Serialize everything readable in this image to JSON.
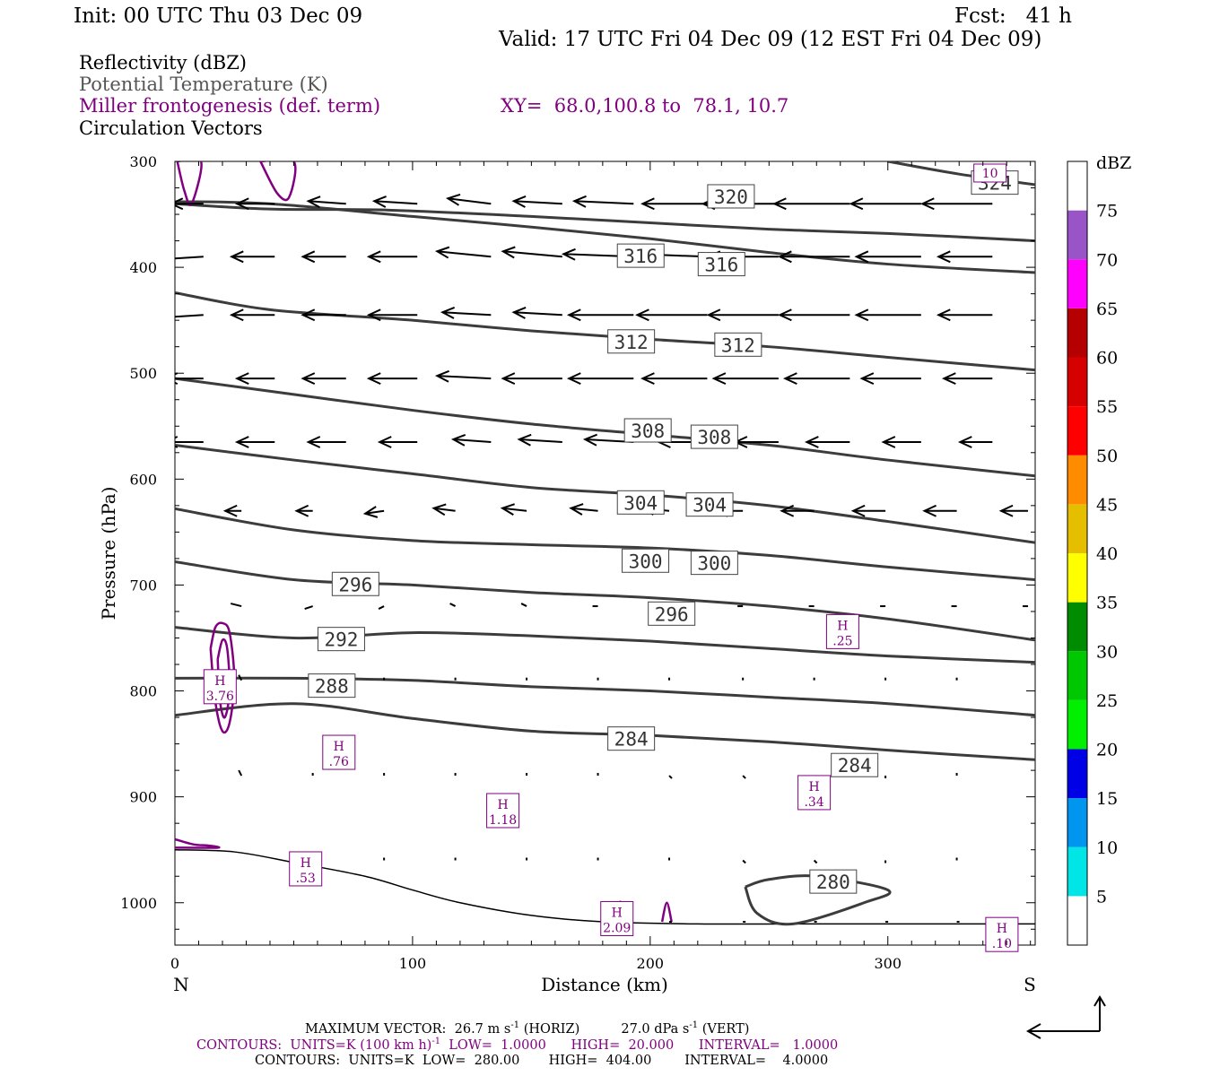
{
  "header": {
    "init": "Init: 00 UTC Thu 03 Dec 09",
    "fcst": "Fcst:   41 h",
    "valid": "Valid: 17 UTC Fri 04 Dec 09 (12 EST Fri 04 Dec 09)"
  },
  "legend": {
    "reflectivity": "Reflectivity (dBZ)",
    "theta": "Potential Temperature (K)",
    "miller": "Miller frontogenesis (def. term)",
    "xy": "XY=  68.0,100.8 to  78.1, 10.7",
    "vectors": "Circulation Vectors"
  },
  "colors": {
    "theta": "#3c3c3c",
    "miller": "#800080",
    "vector": "#000000",
    "reflectivity_scale": [
      "#ffffff",
      "#00e5e5",
      "#0096f0",
      "#0000e6",
      "#00f000",
      "#00c800",
      "#008c00",
      "#ffff00",
      "#e6be00",
      "#ff8c00",
      "#ff0000",
      "#d70000",
      "#b40000",
      "#ff00ff",
      "#9955c8",
      "#ffffff"
    ]
  },
  "colorbar": {
    "unit": "dBZ",
    "labels": [
      "5",
      "10",
      "15",
      "20",
      "25",
      "30",
      "35",
      "40",
      "45",
      "50",
      "55",
      "60",
      "65",
      "70",
      "75"
    ]
  },
  "footer": {
    "max_vector_label": "MAXIMUM VECTOR:",
    "max_vector_h": "26.7 m s",
    "horiz": "(HORIZ)",
    "max_vector_v": "27.0 dPa s",
    "vert": "(VERT)",
    "contours_miller": "CONTOURS:  UNITS=K (100 km h)",
    "contours_miller_tail": "  LOW=  1.0000      HIGH=  20.000      INTERVAL=   1.0000",
    "contours_theta": "CONTOURS:  UNITS=K  LOW=  280.00       HIGH=  404.00        INTERVAL=    4.0000",
    "superscript": "-1"
  },
  "chart_data": {
    "type": "line",
    "title": "",
    "xlabel": "Distance (km)",
    "ylabel": "Pressure (hPa)",
    "xlim": [
      0,
      362
    ],
    "ylim": [
      1040,
      300
    ],
    "x_ticks": [
      0,
      100,
      200,
      300
    ],
    "x_tick_labels": [
      "0",
      "100",
      "200",
      "300"
    ],
    "y_ticks": [
      300,
      400,
      500,
      600,
      700,
      800,
      900,
      1000
    ],
    "y_tick_labels": [
      "300",
      "400",
      "500",
      "600",
      "700",
      "800",
      "900",
      "1000"
    ],
    "x_end_labels": {
      "left": "N",
      "right": "S"
    },
    "grid": false,
    "theta_series": [
      {
        "name": "324",
        "x": [
          300,
          330,
          362
        ],
        "y": [
          300,
          312,
          322
        ]
      },
      {
        "name": "320",
        "x": [
          0,
          40,
          90,
          150,
          200,
          250,
          300,
          362
        ],
        "y": [
          340,
          345,
          346,
          352,
          358,
          364,
          368,
          375
        ]
      },
      {
        "name": "316",
        "x": [
          0,
          40,
          100,
          150,
          200,
          250,
          300,
          362
        ],
        "y": [
          338,
          340,
          352,
          362,
          373,
          386,
          397,
          405
        ]
      },
      {
        "name": "312",
        "x": [
          0,
          40,
          100,
          150,
          200,
          250,
          300,
          362
        ],
        "y": [
          424,
          440,
          450,
          460,
          468,
          475,
          485,
          497
        ]
      },
      {
        "name": "308",
        "x": [
          0,
          50,
          100,
          150,
          200,
          250,
          300,
          362
        ],
        "y": [
          505,
          520,
          535,
          548,
          558,
          568,
          582,
          597
        ]
      },
      {
        "name": "304",
        "x": [
          0,
          50,
          100,
          150,
          200,
          250,
          300,
          362
        ],
        "y": [
          568,
          582,
          595,
          608,
          615,
          625,
          640,
          660
        ]
      },
      {
        "name": "300",
        "x": [
          0,
          50,
          100,
          150,
          200,
          250,
          300,
          362
        ],
        "y": [
          628,
          648,
          658,
          662,
          665,
          672,
          683,
          695
        ]
      },
      {
        "name": "296",
        "x": [
          0,
          50,
          100,
          150,
          200,
          250,
          300,
          362
        ],
        "y": [
          678,
          695,
          700,
          707,
          712,
          720,
          732,
          752
        ]
      },
      {
        "name": "292",
        "x": [
          0,
          50,
          100,
          150,
          200,
          250,
          300,
          362
        ],
        "y": [
          740,
          750,
          745,
          748,
          753,
          760,
          767,
          773
        ]
      },
      {
        "name": "288",
        "x": [
          0,
          50,
          100,
          150,
          200,
          250,
          300,
          362
        ],
        "y": [
          788,
          788,
          790,
          796,
          800,
          806,
          812,
          823
        ]
      },
      {
        "name": "284",
        "x": [
          0,
          50,
          100,
          150,
          200,
          250,
          300,
          362
        ],
        "y": [
          823,
          812,
          826,
          838,
          842,
          848,
          856,
          865
        ]
      },
      {
        "name": "280",
        "x": [
          240,
          245,
          260,
          290,
          300,
          270,
          250,
          240
        ],
        "y": [
          985,
          1010,
          1020,
          1000,
          988,
          975,
          978,
          985
        ]
      }
    ],
    "theta_labels": [
      {
        "text": "324",
        "x": 345,
        "y": 320
      },
      {
        "text": "320",
        "x": 234,
        "y": 333
      },
      {
        "text": "316",
        "x": 196,
        "y": 389
      },
      {
        "text": "316",
        "x": 230,
        "y": 397
      },
      {
        "text": "312",
        "x": 192,
        "y": 470
      },
      {
        "text": "312",
        "x": 237,
        "y": 473
      },
      {
        "text": "308",
        "x": 199,
        "y": 554
      },
      {
        "text": "308",
        "x": 227,
        "y": 560
      },
      {
        "text": "304",
        "x": 196,
        "y": 622
      },
      {
        "text": "304",
        "x": 225,
        "y": 624
      },
      {
        "text": "300",
        "x": 198,
        "y": 677
      },
      {
        "text": "300",
        "x": 227,
        "y": 679
      },
      {
        "text": "296",
        "x": 76,
        "y": 699
      },
      {
        "text": "296",
        "x": 209,
        "y": 727
      },
      {
        "text": "292",
        "x": 70,
        "y": 751
      },
      {
        "text": "288",
        "x": 66,
        "y": 795
      },
      {
        "text": "284",
        "x": 192,
        "y": 845
      },
      {
        "text": "284",
        "x": 286,
        "y": 870
      },
      {
        "text": "280",
        "x": 277,
        "y": 980
      }
    ],
    "miller_highs": [
      {
        "label": "H",
        "value": "3.76",
        "x": 19,
        "y": 796
      },
      {
        "label": "H",
        "value": ".76",
        "x": 69,
        "y": 858
      },
      {
        "label": "H",
        "value": "1.18",
        "x": 138,
        "y": 913
      },
      {
        "label": "H",
        "value": ".53",
        "x": 55,
        "y": 968
      },
      {
        "label": "H",
        "value": "2.09",
        "x": 186,
        "y": 1015
      },
      {
        "label": "H",
        "value": ".25",
        "x": 281,
        "y": 744
      },
      {
        "label": "H",
        "value": ".34",
        "x": 269,
        "y": 896
      },
      {
        "label": "H",
        "value": ".10",
        "x": 348,
        "y": 1030
      },
      {
        "label": "",
        "value": "10",
        "x": 343,
        "y": 311
      }
    ],
    "miller_contours": [
      {
        "x": [
          1,
          4,
          7,
          11,
          1
        ],
        "y": [
          300,
          328,
          340,
          300,
          300
        ]
      },
      {
        "x": [
          36,
          43,
          48,
          50,
          36
        ],
        "y": [
          300,
          330,
          334,
          300,
          300
        ]
      },
      {
        "x": [
          15,
          17,
          20,
          23,
          25,
          23,
          20,
          17,
          15
        ],
        "y": [
          760,
          740,
          736,
          745,
          790,
          830,
          838,
          810,
          760
        ]
      },
      {
        "x": [
          18,
          20,
          22,
          23,
          21,
          19,
          18
        ],
        "y": [
          770,
          752,
          760,
          800,
          825,
          810,
          770
        ]
      },
      {
        "x": [
          0,
          8,
          14,
          18,
          0
        ],
        "y": [
          940,
          945,
          946,
          948,
          948
        ]
      },
      {
        "x": [
          186,
          187,
          189
        ],
        "y": [
          1020,
          1000,
          1003
        ]
      },
      {
        "x": [
          205,
          207,
          209
        ],
        "y": [
          1018,
          1000,
          1018
        ]
      }
    ],
    "terrain": {
      "x": [
        0,
        25,
        50,
        80,
        100,
        120,
        150,
        180,
        220,
        260,
        300,
        362
      ],
      "y": [
        950,
        952,
        962,
        975,
        988,
        1000,
        1012,
        1018,
        1020,
        1020,
        1020,
        1020
      ]
    },
    "vectors_u": [
      {
        "p": 340,
        "x": [
          12,
          42,
          72,
          102,
          133,
          163,
          193,
          224,
          254,
          284,
          314,
          344
        ],
        "dx": [
          -12,
          -14,
          -14,
          -16,
          -16,
          -18,
          -22,
          -24,
          -28,
          -28,
          -26,
          -26
        ],
        "dy": [
          0,
          0,
          -1,
          -1,
          -2,
          -1,
          -1,
          0,
          0,
          0,
          0,
          0
        ]
      },
      {
        "p": 390,
        "x": [
          12,
          42,
          72,
          102,
          133,
          163,
          193,
          224,
          254,
          284,
          314,
          344
        ],
        "dx": [
          -16,
          -16,
          -16,
          -18,
          -20,
          -22,
          -26,
          -26,
          -26,
          -26,
          -24,
          -20
        ],
        "dy": [
          1,
          0,
          0,
          0,
          -2,
          -2,
          -1,
          -1,
          0,
          0,
          0,
          0
        ]
      },
      {
        "p": 445,
        "x": [
          12,
          42,
          72,
          102,
          133,
          163,
          193,
          224,
          254,
          284,
          314,
          344
        ],
        "dx": [
          -16,
          -16,
          -16,
          -18,
          -18,
          -18,
          -24,
          -26,
          -26,
          -26,
          -24,
          -20
        ],
        "dy": [
          1,
          0,
          0,
          0,
          -1,
          -1,
          0,
          0,
          0,
          0,
          0,
          0
        ]
      },
      {
        "p": 505,
        "x": [
          12,
          42,
          72,
          102,
          133,
          163,
          193,
          224,
          254,
          284,
          314,
          344
        ],
        "dx": [
          -14,
          -14,
          -16,
          -18,
          -20,
          -22,
          -24,
          -24,
          -24,
          -24,
          -22,
          -18
        ],
        "dy": [
          0,
          0,
          0,
          0,
          -1,
          0,
          0,
          0,
          0,
          0,
          0,
          0
        ]
      },
      {
        "p": 565,
        "x": [
          12,
          42,
          72,
          102,
          133,
          163,
          193,
          224,
          254,
          284,
          314,
          344
        ],
        "dx": [
          -14,
          -14,
          -14,
          -14,
          -14,
          -16,
          -18,
          -18,
          -16,
          -16,
          -14,
          -12
        ],
        "dy": [
          0,
          0,
          0,
          0,
          -1,
          -1,
          -1,
          0,
          0,
          0,
          0,
          0
        ]
      },
      {
        "p": 630,
        "x": [
          28,
          58,
          88,
          118,
          148,
          178,
          208,
          239,
          269,
          299,
          329,
          359
        ],
        "dx": [
          -6,
          -6,
          -7,
          -8,
          -9,
          -10,
          -10,
          -10,
          -12,
          -12,
          -12,
          -10
        ],
        "dy": [
          0,
          0,
          1,
          -1,
          -1,
          -1,
          -1,
          0,
          0,
          0,
          0,
          0
        ]
      },
      {
        "p": 720,
        "x": [
          28,
          58,
          88,
          118,
          148,
          178,
          208,
          239,
          269,
          299,
          329,
          359
        ],
        "dx": [
          -4,
          -3,
          -2,
          -2,
          -2,
          -2,
          -2,
          -2,
          -2,
          -2,
          -2,
          -2
        ],
        "dy": [
          -1,
          1,
          1,
          -1,
          -1,
          0,
          0,
          0,
          0,
          0,
          0,
          0
        ]
      },
      {
        "p": 790,
        "x": [
          28,
          58,
          88,
          118,
          148,
          178,
          208,
          239,
          269,
          299,
          329,
          359
        ],
        "dx": [
          -1,
          -1,
          0,
          0,
          0,
          0,
          0,
          0,
          0,
          0,
          0,
          0
        ],
        "dy": [
          -2,
          -1,
          -1,
          -1,
          -1,
          -1,
          -1,
          -1,
          -1,
          -1,
          -1,
          0
        ]
      },
      {
        "p": 880,
        "x": [
          28,
          58,
          88,
          118,
          148,
          178,
          208,
          239,
          269,
          299,
          329,
          359
        ],
        "dx": [
          -1,
          0,
          0,
          0,
          0,
          0,
          1,
          1,
          1,
          0,
          0,
          0
        ],
        "dy": [
          -2,
          -1,
          -1,
          -1,
          -1,
          -1,
          1,
          1,
          1,
          1,
          -1,
          0
        ]
      },
      {
        "p": 960,
        "x": [
          58,
          88,
          118,
          148,
          178,
          208,
          239,
          269,
          299,
          329
        ],
        "dx": [
          0,
          0,
          0,
          0,
          0,
          0,
          1,
          1,
          0,
          0
        ],
        "dy": [
          -1,
          -1,
          -1,
          -1,
          -1,
          -1,
          1,
          1,
          1,
          -1
        ]
      },
      {
        "p": 1018,
        "x": [
          208,
          239,
          269,
          299,
          329
        ],
        "dx": [
          1,
          1,
          1,
          1,
          1
        ],
        "dy": [
          0,
          0,
          0,
          0,
          0
        ]
      }
    ]
  }
}
